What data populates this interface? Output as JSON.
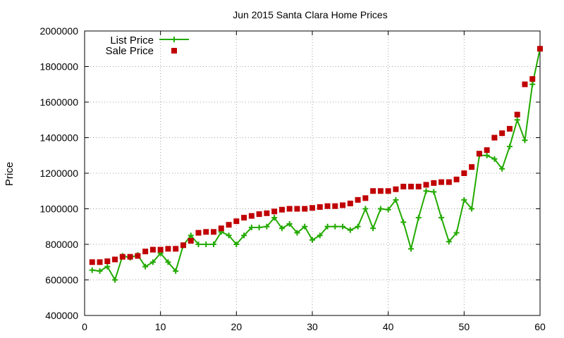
{
  "chart_data": {
    "type": "line",
    "title": "Jun 2015 Santa Clara Home Prices",
    "xlabel": "",
    "ylabel": "Price",
    "xlim": [
      0,
      60
    ],
    "ylim": [
      400000,
      2000000
    ],
    "xticks": [
      0,
      10,
      20,
      30,
      40,
      50,
      60
    ],
    "yticks": [
      400000,
      600000,
      800000,
      1000000,
      1200000,
      1400000,
      1600000,
      1800000,
      2000000
    ],
    "grid": true,
    "legend_position": "top-left",
    "series": [
      {
        "name": "List Price",
        "style": "line-with-plus-markers",
        "color": "#22aa00",
        "x": [
          1,
          2,
          3,
          4,
          5,
          6,
          7,
          8,
          9,
          10,
          11,
          12,
          13,
          14,
          15,
          16,
          17,
          18,
          19,
          20,
          21,
          22,
          23,
          24,
          25,
          26,
          27,
          28,
          29,
          30,
          31,
          32,
          33,
          34,
          35,
          36,
          37,
          38,
          39,
          40,
          41,
          42,
          43,
          44,
          45,
          46,
          47,
          48,
          49,
          50,
          51,
          52,
          53,
          54,
          55,
          56,
          57,
          58,
          59,
          60
        ],
        "values": [
          655000,
          650000,
          675000,
          600000,
          735000,
          725000,
          740000,
          675000,
          700000,
          750000,
          700000,
          650000,
          795000,
          850000,
          800000,
          800000,
          800000,
          870000,
          850000,
          800000,
          850000,
          895000,
          895000,
          900000,
          950000,
          890000,
          915000,
          865000,
          900000,
          825000,
          850000,
          900000,
          900000,
          900000,
          880000,
          900000,
          1000000,
          890000,
          1000000,
          995000,
          1050000,
          925000,
          775000,
          950000,
          1100000,
          1095000,
          950000,
          815000,
          865000,
          1050000,
          1000000,
          1300000,
          1300000,
          1280000,
          1225000,
          1350000,
          1500000,
          1385000,
          1700000,
          1900000
        ]
      },
      {
        "name": "Sale Price",
        "style": "square-markers",
        "color": "#c00000",
        "x": [
          1,
          2,
          3,
          4,
          5,
          6,
          7,
          8,
          9,
          10,
          11,
          12,
          13,
          14,
          15,
          16,
          17,
          18,
          19,
          20,
          21,
          22,
          23,
          24,
          25,
          26,
          27,
          28,
          29,
          30,
          31,
          32,
          33,
          34,
          35,
          36,
          37,
          38,
          39,
          40,
          41,
          42,
          43,
          44,
          45,
          46,
          47,
          48,
          49,
          50,
          51,
          52,
          53,
          54,
          55,
          56,
          57,
          58,
          59,
          60
        ],
        "values": [
          700000,
          700000,
          705000,
          715000,
          730000,
          730000,
          735000,
          760000,
          770000,
          770000,
          775000,
          775000,
          795000,
          820000,
          865000,
          870000,
          870000,
          890000,
          910000,
          930000,
          950000,
          960000,
          970000,
          975000,
          985000,
          995000,
          1000000,
          1000000,
          1000000,
          1005000,
          1010000,
          1015000,
          1015000,
          1020000,
          1030000,
          1050000,
          1060000,
          1100000,
          1100000,
          1100000,
          1110000,
          1125000,
          1125000,
          1125000,
          1135000,
          1145000,
          1150000,
          1150000,
          1165000,
          1200000,
          1235000,
          1310000,
          1330000,
          1400000,
          1425000,
          1450000,
          1530000,
          1700000,
          1730000,
          1900000
        ]
      }
    ]
  }
}
